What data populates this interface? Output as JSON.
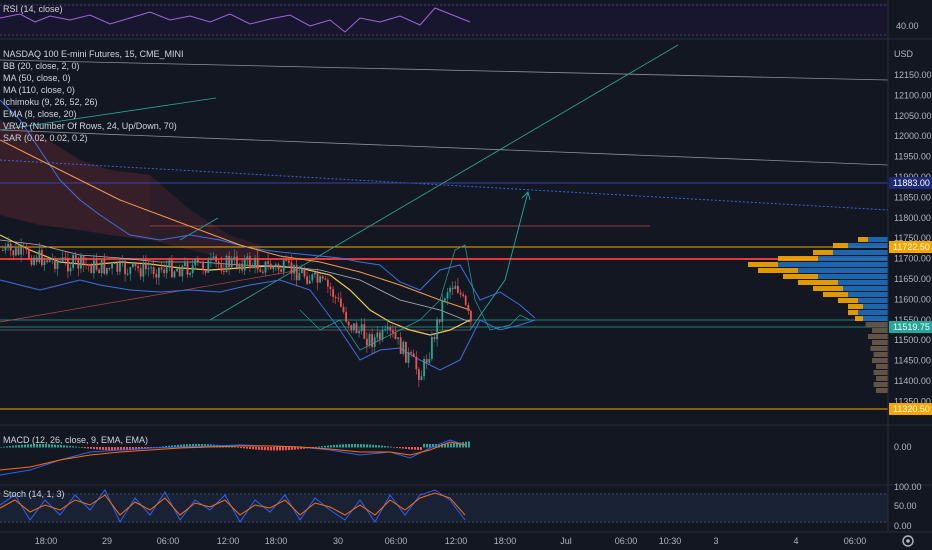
{
  "panes": {
    "rsi": {
      "label": "RSI (14, close)",
      "tick": "40.00"
    },
    "main": {
      "currency": "USD",
      "legend": [
        "NASDAQ 100 E-mini Futures, 15, CME_MINI",
        "BB (20, close, 2, 0)",
        "MA (50, close, 0)",
        "MA (110, close, 0)",
        "Ichimoku (9, 26, 52, 26)",
        "EMA (8, close, 20)",
        "VRVP (Number Of Rows, 24, Up/Down, 70)",
        "SAR (0.02, 0.02, 0.2)"
      ],
      "price_ticks": [
        "12150.00",
        "12100.00",
        "12050.00",
        "12000.00",
        "11950.00",
        "11900.00",
        "11850.00",
        "11800.00",
        "11750.00",
        "11700.00",
        "11650.00",
        "11600.00",
        "11550.00",
        "11500.00",
        "11450.00",
        "11400.00",
        "11350.00"
      ],
      "price_tags": [
        {
          "text": "11883.00",
          "color": "#1e2a78"
        },
        {
          "text": "11722.50",
          "color": "#f7a600"
        },
        {
          "text": "11519.75",
          "color": "#26a69a"
        },
        {
          "text": "11320.50",
          "color": "#f7a600"
        }
      ]
    },
    "macd": {
      "label": "MACD (12, 26, close, 9, EMA, EMA)",
      "tick": "0.00"
    },
    "stoch": {
      "label": "Stoch (14, 1, 3)",
      "ticks": [
        "100.00",
        "50.00",
        "0.00"
      ]
    }
  },
  "time_axis": [
    "18:00",
    "29",
    "06:00",
    "12:00",
    "18:00",
    "30",
    "06:00",
    "12:00",
    "18:00",
    "Jul",
    "06:00",
    "10:30",
    "3",
    "4",
    "06:00"
  ],
  "colors": {
    "bg": "#131722",
    "up": "#26a69a",
    "down": "#ef5350",
    "grid": "#1e222d"
  },
  "icons": {
    "settings": "gear-icon"
  }
}
